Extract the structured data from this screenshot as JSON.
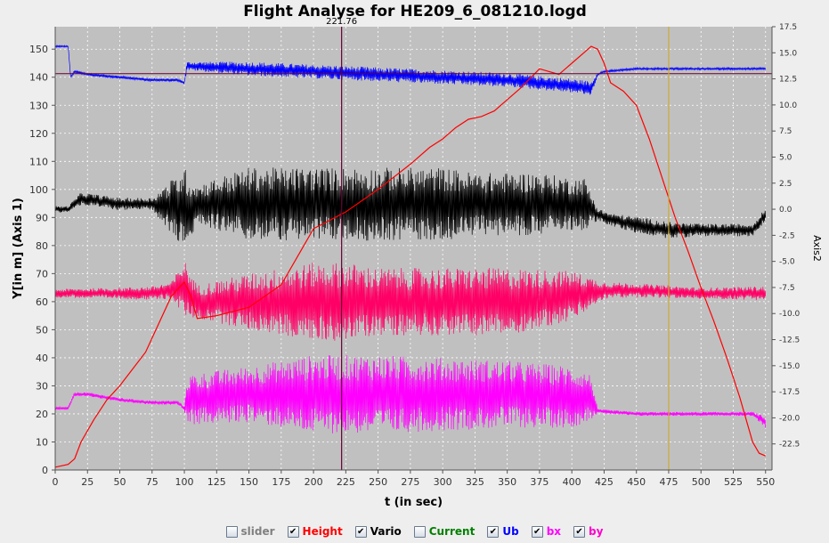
{
  "chart_data": {
    "type": "line",
    "title": "Flight Analyse for HE209_6_081210.logd",
    "xlabel": "t (in sec)",
    "ylabel": "Y[in m] (Axis 1)",
    "y2label": "Axis2",
    "xlim": [
      0,
      555
    ],
    "ylim": [
      0,
      158
    ],
    "y2lim": [
      -25,
      17.5
    ],
    "x_ticks": [
      "0",
      "25",
      "50",
      "75",
      "100",
      "125",
      "150",
      "175",
      "200",
      "225",
      "250",
      "275",
      "300",
      "325",
      "350",
      "375",
      "400",
      "425",
      "450",
      "475",
      "500",
      "525",
      "550"
    ],
    "y_ticks": [
      "0",
      "10",
      "20",
      "30",
      "40",
      "50",
      "60",
      "70",
      "80",
      "90",
      "100",
      "110",
      "120",
      "130",
      "140",
      "150"
    ],
    "y2_ticks": [
      "17.5",
      "15.0",
      "12.5",
      "10.0",
      "7.5",
      "5.0",
      "2.5",
      "0.0",
      "-2.5",
      "-5.0",
      "-7.5",
      "-10.0",
      "-12.5",
      "-15.0",
      "-17.5",
      "-20.0",
      "-22.5"
    ],
    "cursor": {
      "x": 221.76,
      "label": "221.76"
    },
    "marker_x": 475,
    "grid": true,
    "legend_position": "bottom",
    "series": [
      {
        "name": "Height",
        "color": "#ff0000",
        "x": [
          0,
          10,
          15,
          20,
          30,
          40,
          50,
          60,
          70,
          80,
          90,
          100,
          105,
          110,
          125,
          150,
          175,
          190,
          200,
          225,
          250,
          275,
          290,
          300,
          310,
          320,
          330,
          340,
          350,
          360,
          375,
          390,
          400,
          410,
          415,
          420,
          425,
          430,
          440,
          450,
          460,
          470,
          480,
          490,
          500,
          510,
          520,
          530,
          540,
          545,
          550
        ],
        "y": [
          1,
          2,
          4,
          10,
          18,
          25,
          30,
          36,
          42,
          52,
          62,
          67,
          62,
          54,
          55,
          58,
          66,
          78,
          86,
          92,
          100,
          109,
          115,
          118,
          122,
          125,
          126,
          128,
          132,
          136,
          143,
          141,
          145,
          149,
          151,
          150,
          145,
          138,
          135,
          130,
          118,
          104,
          90,
          78,
          65,
          53,
          40,
          26,
          10,
          6,
          5
        ]
      },
      {
        "name": "Vario",
        "color": "#000000",
        "axis": 2,
        "x": [
          0,
          10,
          20,
          50,
          75,
          100,
          105,
          110,
          125,
          150,
          175,
          200,
          225,
          250,
          275,
          300,
          325,
          350,
          375,
          400,
          410,
          420,
          430,
          450,
          475,
          500,
          525,
          540,
          550
        ],
        "y": [
          0,
          0,
          1,
          0.5,
          0.5,
          0,
          0,
          0.5,
          0.5,
          0.5,
          0.5,
          0.5,
          0.5,
          0.5,
          0.5,
          0.5,
          0.5,
          0.5,
          0.5,
          0.5,
          0.5,
          -0.5,
          -1,
          -1.5,
          -2,
          -2,
          -2,
          -2,
          -0.5
        ],
        "amp": [
          0.3,
          0.3,
          0.6,
          0.6,
          0.6,
          4,
          3,
          1.8,
          2.5,
          3.5,
          3.5,
          3.5,
          3.5,
          3.5,
          3.5,
          3.5,
          3,
          3,
          3,
          2.5,
          2.5,
          0.6,
          0.6,
          0.8,
          0.8,
          0.6,
          0.6,
          0.6,
          0.6
        ]
      },
      {
        "name": "Ub",
        "color": "#0000ff",
        "x": [
          0,
          10,
          12,
          15,
          25,
          50,
          75,
          95,
          100,
          102,
          150,
          200,
          250,
          300,
          350,
          400,
          415,
          420,
          425,
          450,
          475,
          500,
          525,
          550
        ],
        "y": [
          151,
          151,
          140,
          142,
          141,
          140,
          139,
          139,
          138,
          144,
          143,
          142,
          141,
          140,
          139,
          137,
          136,
          141,
          142,
          143,
          143,
          143,
          143,
          143
        ],
        "amp": [
          0.3,
          0.3,
          0.5,
          0.5,
          0.5,
          0.5,
          0.5,
          0.5,
          0.5,
          1.5,
          2.5,
          2.5,
          2.5,
          2.5,
          2.5,
          2.5,
          2.5,
          0.4,
          0.4,
          0.4,
          0.4,
          0.4,
          0.4,
          0.4
        ]
      },
      {
        "name": "bx",
        "color": "#ff00ff",
        "x": [
          0,
          10,
          15,
          25,
          50,
          75,
          95,
          100,
          102,
          150,
          200,
          250,
          300,
          350,
          400,
          415,
          420,
          450,
          475,
          500,
          525,
          540,
          550
        ],
        "y": [
          22,
          22,
          27,
          27,
          25,
          24,
          24,
          22,
          25,
          27,
          27,
          27,
          27,
          27,
          26,
          26,
          21,
          20,
          20,
          20,
          20,
          20,
          17
        ],
        "amp": [
          0.5,
          0.5,
          0.7,
          0.7,
          0.7,
          0.7,
          0.7,
          0.7,
          9,
          10,
          14,
          14,
          13,
          12,
          11,
          8,
          0.7,
          0.7,
          0.7,
          0.7,
          0.7,
          0.7,
          2
        ]
      },
      {
        "name": "by",
        "color": "#ff0066",
        "x": [
          0,
          50,
          75,
          90,
          100,
          105,
          110,
          150,
          200,
          225,
          250,
          300,
          350,
          400,
          425,
          450,
          500,
          550
        ],
        "y": [
          63,
          63,
          63,
          64,
          65,
          62,
          60,
          60,
          60,
          60,
          60,
          60,
          60,
          62,
          64,
          64,
          63,
          63
        ],
        "amp": [
          1.5,
          2,
          2.5,
          3,
          10,
          8,
          6,
          10,
          14,
          14,
          12,
          12,
          12,
          9,
          3,
          2.5,
          2,
          2.5
        ]
      }
    ],
    "legend": [
      {
        "label": "slider",
        "checked": false,
        "color": "#808080"
      },
      {
        "label": "Height",
        "checked": true,
        "color": "#ff0000"
      },
      {
        "label": "Vario",
        "checked": true,
        "color": "#000000"
      },
      {
        "label": "Current",
        "checked": false,
        "color": "#008000"
      },
      {
        "label": "Ub",
        "checked": true,
        "color": "#0000ff"
      },
      {
        "label": "bx",
        "checked": true,
        "color": "#ff00ff"
      },
      {
        "label": "by",
        "checked": true,
        "color": "#ff00cc"
      }
    ]
  }
}
